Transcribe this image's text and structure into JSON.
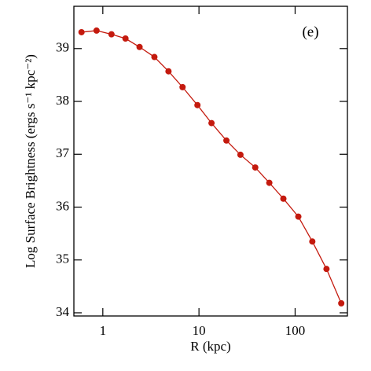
{
  "chart_data": {
    "type": "line",
    "annotation": "(e)",
    "xlabel": "R (kpc)",
    "ylabel": "Log Surface Brightness (ergs s⁻¹ kpc⁻²)",
    "x": [
      0.6,
      0.86,
      1.23,
      1.72,
      2.41,
      3.44,
      4.82,
      6.75,
      9.64,
      13.5,
      19.3,
      27.0,
      38.5,
      53.9,
      75.5,
      108,
      151,
      212,
      302
    ],
    "series": [
      {
        "color": "#c41a0e",
        "values": [
          39.31,
          39.34,
          39.27,
          39.19,
          39.03,
          38.84,
          38.57,
          38.27,
          37.93,
          37.59,
          37.26,
          36.99,
          36.75,
          36.46,
          36.16,
          35.82,
          35.35,
          34.83,
          34.18
        ]
      }
    ],
    "xscale": "log",
    "xlim": [
      0.5,
      350
    ],
    "xticks": [
      1,
      10,
      100
    ],
    "ylim": [
      33.94,
      39.8
    ],
    "yticks": [
      34,
      35,
      36,
      37,
      38,
      39
    ],
    "grid": false
  }
}
